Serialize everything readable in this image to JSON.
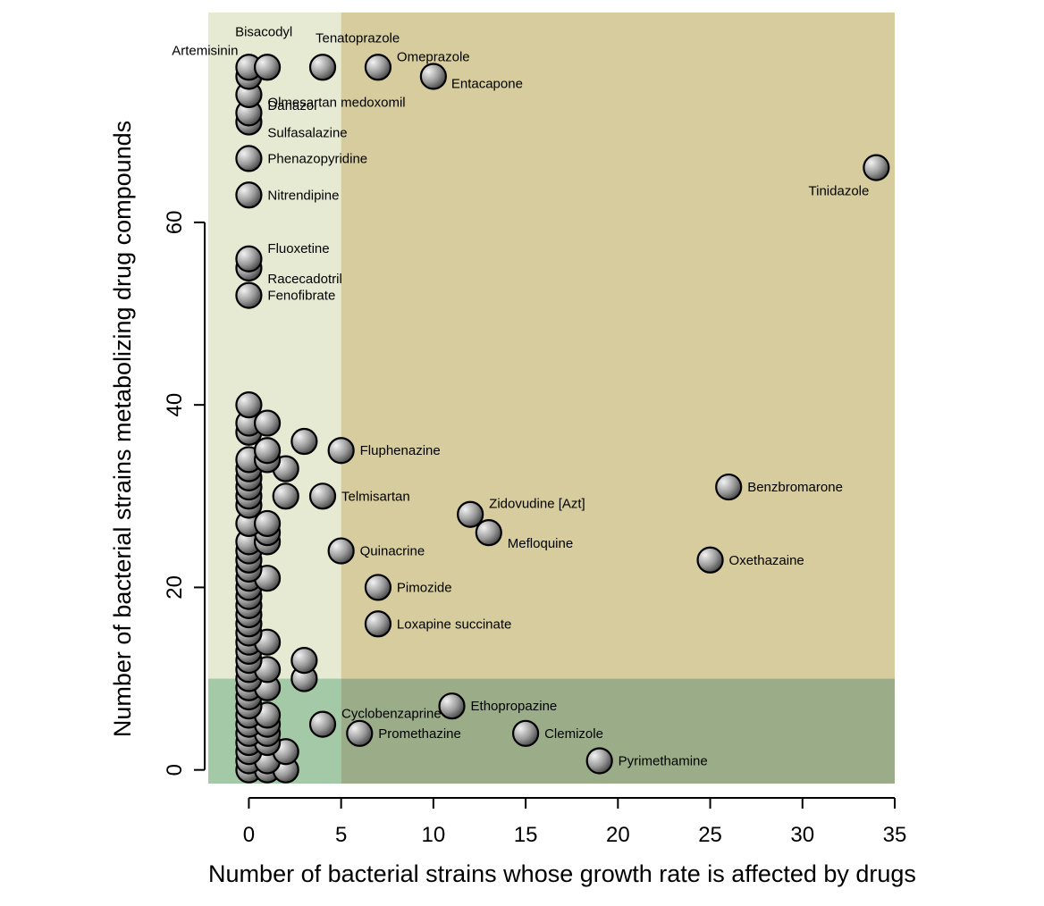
{
  "chart_data": {
    "type": "scatter",
    "xlabel": "Number of bacterial strains whose growth rate is affected by drugs",
    "ylabel": "Number of bacterial strains metabolizing drug compounds",
    "xlim": [
      -2.2,
      35
    ],
    "ylim": [
      -1.5,
      83
    ],
    "xticks": [
      "0",
      "5",
      "10",
      "15",
      "20",
      "25",
      "30",
      "35"
    ],
    "yticks": [
      "0",
      "20",
      "40",
      "60"
    ],
    "regions": [
      {
        "name": "metabolized-not-affected",
        "x": [
          -2.2,
          5
        ],
        "y": [
          10,
          83
        ],
        "color": "#e6ead3"
      },
      {
        "name": "metabolized-and-affected",
        "x": [
          5,
          35
        ],
        "y": [
          10,
          83
        ],
        "color": "#d6cc9d"
      },
      {
        "name": "not-metabolized-not-affected",
        "x": [
          -2.2,
          5
        ],
        "y": [
          -1.5,
          10
        ],
        "color": "#a3c9a7"
      },
      {
        "name": "affected-not-metabolized",
        "x": [
          5,
          35
        ],
        "y": [
          -1.5,
          10
        ],
        "color": "#9bad88"
      }
    ],
    "points": [
      {
        "x": 0,
        "y": 77,
        "label": "Artemisinin",
        "pos": "topleft"
      },
      {
        "x": 1,
        "y": 77,
        "label": "Bisacodyl",
        "pos": "topleft2"
      },
      {
        "x": 4,
        "y": 77,
        "label": "Tenatoprazole",
        "pos": "top"
      },
      {
        "x": 7,
        "y": 77,
        "label": "Omeprazole",
        "pos": "upright"
      },
      {
        "x": 10,
        "y": 76,
        "label": "Entacapone",
        "pos": "downright"
      },
      {
        "x": 0,
        "y": 76,
        "label": "",
        "pos": ""
      },
      {
        "x": 0,
        "y": 74,
        "label": "Danazol",
        "pos": "lowright"
      },
      {
        "x": 0,
        "y": 72,
        "label": "Olmesartan medoxomil",
        "pos": "upright"
      },
      {
        "x": 0,
        "y": 71,
        "label": "Sulfasalazine",
        "pos": "lowright"
      },
      {
        "x": 0,
        "y": 67,
        "label": "Phenazopyridine",
        "pos": "right"
      },
      {
        "x": 34,
        "y": 66,
        "label": "Tinidazole",
        "pos": "belowleft"
      },
      {
        "x": 0,
        "y": 63,
        "label": "Nitrendipine",
        "pos": "right"
      },
      {
        "x": 0,
        "y": 56,
        "label": "Fluoxetine",
        "pos": "upright"
      },
      {
        "x": 0,
        "y": 55,
        "label": "Racecadotril",
        "pos": "lowright"
      },
      {
        "x": 0,
        "y": 52,
        "label": "Fenofibrate",
        "pos": "right"
      },
      {
        "x": 0,
        "y": 40,
        "label": "",
        "pos": ""
      },
      {
        "x": 0,
        "y": 38,
        "label": "",
        "pos": ""
      },
      {
        "x": 1,
        "y": 38,
        "label": "",
        "pos": ""
      },
      {
        "x": 0,
        "y": 37,
        "label": "",
        "pos": ""
      },
      {
        "x": 3,
        "y": 36,
        "label": "",
        "pos": ""
      },
      {
        "x": 5,
        "y": 35,
        "label": "Fluphenazine",
        "pos": "right"
      },
      {
        "x": 1,
        "y": 35,
        "label": "",
        "pos": ""
      },
      {
        "x": 0,
        "y": 34,
        "label": "",
        "pos": ""
      },
      {
        "x": 1,
        "y": 34,
        "label": "",
        "pos": ""
      },
      {
        "x": 0,
        "y": 33,
        "label": "",
        "pos": ""
      },
      {
        "x": 2,
        "y": 33,
        "label": "",
        "pos": ""
      },
      {
        "x": 0,
        "y": 32,
        "label": "",
        "pos": ""
      },
      {
        "x": 0,
        "y": 31,
        "label": "",
        "pos": ""
      },
      {
        "x": 26,
        "y": 31,
        "label": "Benzbromarone",
        "pos": "right"
      },
      {
        "x": 0,
        "y": 30,
        "label": "",
        "pos": ""
      },
      {
        "x": 2,
        "y": 30,
        "label": "",
        "pos": ""
      },
      {
        "x": 4,
        "y": 30,
        "label": "Telmisartan",
        "pos": "right"
      },
      {
        "x": 0,
        "y": 29,
        "label": "",
        "pos": ""
      },
      {
        "x": 12,
        "y": 28,
        "label": "Zidovudine [Azt]",
        "pos": "upright"
      },
      {
        "x": 0,
        "y": 27,
        "label": "",
        "pos": ""
      },
      {
        "x": 1,
        "y": 27,
        "label": "",
        "pos": ""
      },
      {
        "x": 1,
        "y": 26,
        "label": "",
        "pos": ""
      },
      {
        "x": 13,
        "y": 26,
        "label": "Mefloquine",
        "pos": "lowright"
      },
      {
        "x": 0,
        "y": 25,
        "label": "",
        "pos": ""
      },
      {
        "x": 1,
        "y": 25,
        "label": "",
        "pos": ""
      },
      {
        "x": 0,
        "y": 24,
        "label": "",
        "pos": ""
      },
      {
        "x": 5,
        "y": 24,
        "label": "Quinacrine",
        "pos": "right"
      },
      {
        "x": 0,
        "y": 23,
        "label": "",
        "pos": ""
      },
      {
        "x": 25,
        "y": 23,
        "label": "Oxethazaine",
        "pos": "right"
      },
      {
        "x": 0,
        "y": 22,
        "label": "",
        "pos": ""
      },
      {
        "x": 0,
        "y": 21,
        "label": "",
        "pos": ""
      },
      {
        "x": 1,
        "y": 21,
        "label": "",
        "pos": ""
      },
      {
        "x": 0,
        "y": 20,
        "label": "",
        "pos": ""
      },
      {
        "x": 7,
        "y": 20,
        "label": "Pimozide",
        "pos": "right"
      },
      {
        "x": 0,
        "y": 19,
        "label": "",
        "pos": ""
      },
      {
        "x": 0,
        "y": 18,
        "label": "",
        "pos": ""
      },
      {
        "x": 0,
        "y": 17,
        "label": "",
        "pos": ""
      },
      {
        "x": 0,
        "y": 16,
        "label": "",
        "pos": ""
      },
      {
        "x": 7,
        "y": 16,
        "label": "Loxapine succinate",
        "pos": "right"
      },
      {
        "x": 0,
        "y": 15,
        "label": "",
        "pos": ""
      },
      {
        "x": 0,
        "y": 14,
        "label": "",
        "pos": ""
      },
      {
        "x": 1,
        "y": 14,
        "label": "",
        "pos": ""
      },
      {
        "x": 0,
        "y": 13,
        "label": "",
        "pos": ""
      },
      {
        "x": 0,
        "y": 12,
        "label": "",
        "pos": ""
      },
      {
        "x": 3,
        "y": 12,
        "label": "",
        "pos": ""
      },
      {
        "x": 0,
        "y": 11,
        "label": "",
        "pos": ""
      },
      {
        "x": 1,
        "y": 11,
        "label": "",
        "pos": ""
      },
      {
        "x": 0,
        "y": 10,
        "label": "",
        "pos": ""
      },
      {
        "x": 3,
        "y": 10,
        "label": "",
        "pos": ""
      },
      {
        "x": 0,
        "y": 9,
        "label": "",
        "pos": ""
      },
      {
        "x": 1,
        "y": 9,
        "label": "",
        "pos": ""
      },
      {
        "x": 0,
        "y": 8,
        "label": "",
        "pos": ""
      },
      {
        "x": 11,
        "y": 7,
        "label": "Ethopropazine",
        "pos": "right"
      },
      {
        "x": 0,
        "y": 7,
        "label": "",
        "pos": ""
      },
      {
        "x": 0,
        "y": 6,
        "label": "",
        "pos": ""
      },
      {
        "x": 1,
        "y": 6,
        "label": "",
        "pos": ""
      },
      {
        "x": 0,
        "y": 5,
        "label": "",
        "pos": ""
      },
      {
        "x": 1,
        "y": 5,
        "label": "",
        "pos": ""
      },
      {
        "x": 4,
        "y": 5,
        "label": "Cyclobenzaprine",
        "pos": "upright"
      },
      {
        "x": 0,
        "y": 4,
        "label": "",
        "pos": ""
      },
      {
        "x": 1,
        "y": 4,
        "label": "",
        "pos": ""
      },
      {
        "x": 6,
        "y": 4,
        "label": "Promethazine",
        "pos": "right"
      },
      {
        "x": 15,
        "y": 4,
        "label": "Clemizole",
        "pos": "right"
      },
      {
        "x": 0,
        "y": 3,
        "label": "",
        "pos": ""
      },
      {
        "x": 1,
        "y": 3,
        "label": "",
        "pos": ""
      },
      {
        "x": 0,
        "y": 2,
        "label": "",
        "pos": ""
      },
      {
        "x": 2,
        "y": 2,
        "label": "",
        "pos": ""
      },
      {
        "x": 0,
        "y": 1,
        "label": "",
        "pos": ""
      },
      {
        "x": 1,
        "y": 1,
        "label": "",
        "pos": ""
      },
      {
        "x": 19,
        "y": 1,
        "label": "Pyrimethamine",
        "pos": "right"
      },
      {
        "x": 0,
        "y": 0,
        "label": "",
        "pos": ""
      },
      {
        "x": 1,
        "y": 0,
        "label": "",
        "pos": ""
      },
      {
        "x": 2,
        "y": 0,
        "label": "",
        "pos": ""
      }
    ]
  }
}
